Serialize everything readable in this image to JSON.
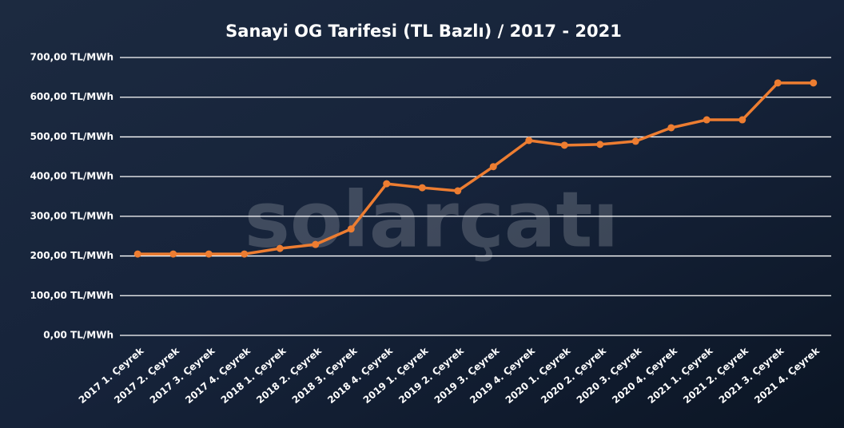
{
  "chart_data": {
    "type": "line",
    "title": "Sanayi OG Tarifesi (TL Bazlı) / 2017 - 2021",
    "watermark": "solarçatı",
    "categories": [
      "2017 1. Çeyrek",
      "2017 2. Çeyrek",
      "2017 3. Çeyrek",
      "2017 4. Çeyrek",
      "2018 1. Çeyrek",
      "2018 2. Çeyrek",
      "2018 3. Çeyrek",
      "2018 4. Çeyrek",
      "2019 1. Çeyrek",
      "2019 2. Çeyrek",
      "2019 3. Çeyrek",
      "2019 4. Çeyrek",
      "2020 1. Çeyrek",
      "2020 2. Çeyrek",
      "2020 3. Çeyrek",
      "2020 4. Çeyrek",
      "2021 1. Çeyrek",
      "2021 2. Çeyrek",
      "2021 3. Çeyrek",
      "2021 4. Çeyrek"
    ],
    "values": [
      205,
      205,
      205,
      205,
      219,
      229,
      268,
      382,
      372,
      364,
      425,
      491,
      479,
      481,
      489,
      523,
      543,
      543,
      636,
      636
    ],
    "color": "#ed7d31",
    "ylim": [
      0,
      700
    ],
    "yticks": [
      {
        "value": 0,
        "label": "0,00 TL/MWh"
      },
      {
        "value": 100,
        "label": "100,00 TL/MWh"
      },
      {
        "value": 200,
        "label": "200,00 TL/MWh"
      },
      {
        "value": 300,
        "label": "300,00 TL/MWh"
      },
      {
        "value": 400,
        "label": "400,00 TL/MWh"
      },
      {
        "value": 500,
        "label": "500,00 TL/MWh"
      },
      {
        "value": 600,
        "label": "600,00 TL/MWh"
      },
      {
        "value": 700,
        "label": "700,00 TL/MWh"
      }
    ],
    "grid": true
  }
}
